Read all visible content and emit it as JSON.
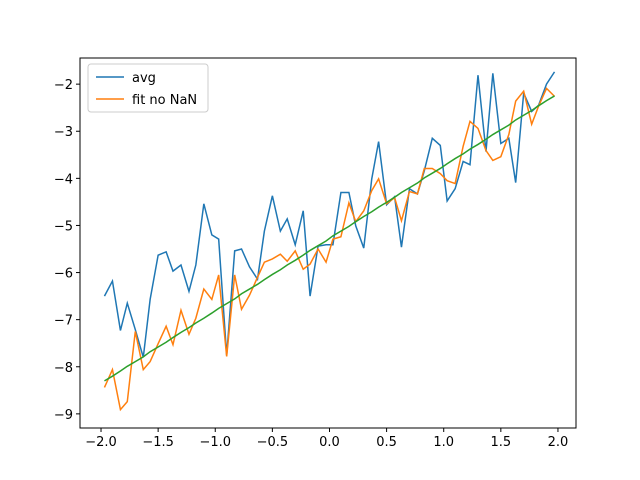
{
  "chart_data": {
    "type": "line",
    "x": [
      -1.97,
      -1.9,
      -1.83,
      -1.77,
      -1.7,
      -1.63,
      -1.57,
      -1.5,
      -1.43,
      -1.37,
      -1.3,
      -1.23,
      -1.17,
      -1.1,
      -1.03,
      -0.97,
      -0.9,
      -0.83,
      -0.77,
      -0.7,
      -0.63,
      -0.57,
      -0.5,
      -0.43,
      -0.37,
      -0.3,
      -0.23,
      -0.17,
      -0.1,
      -0.03,
      0.03,
      0.1,
      0.17,
      0.23,
      0.3,
      0.37,
      0.43,
      0.5,
      0.57,
      0.63,
      0.7,
      0.77,
      0.83,
      0.9,
      0.97,
      1.03,
      1.1,
      1.17,
      1.23,
      1.3,
      1.37,
      1.43,
      1.5,
      1.57,
      1.63,
      1.7,
      1.77,
      1.83,
      1.9,
      1.97
    ],
    "series": [
      {
        "name": "avg",
        "color": "#1f77b4",
        "values": [
          -6.5,
          -6.18,
          -7.23,
          -6.65,
          -7.21,
          -7.8,
          -6.57,
          -5.63,
          -5.56,
          -5.97,
          -5.84,
          -6.4,
          -5.84,
          -4.54,
          -5.2,
          -5.29,
          -7.76,
          -5.54,
          -5.5,
          -5.88,
          -6.14,
          -5.12,
          -4.37,
          -5.12,
          -4.86,
          -5.41,
          -4.69,
          -6.5,
          -5.44,
          -5.41,
          -5.41,
          -4.3,
          -4.3,
          -5.01,
          -5.48,
          -4.01,
          -3.22,
          -4.56,
          -4.39,
          -5.46,
          -4.22,
          -4.33,
          -3.84,
          -3.15,
          -3.3,
          -4.48,
          -4.22,
          -3.64,
          -3.71,
          -1.81,
          -3.43,
          -1.77,
          -3.26,
          -3.15,
          -4.09,
          -2.19,
          -2.58,
          -2.45,
          -2.0,
          -1.74
        ]
      },
      {
        "name": "fit no NaN",
        "color": "#ff7f0e",
        "values": [
          -8.44,
          -8.06,
          -8.91,
          -8.74,
          -7.25,
          -8.06,
          -7.89,
          -7.51,
          -7.14,
          -7.53,
          -6.8,
          -7.31,
          -6.97,
          -6.35,
          -6.57,
          -6.05,
          -7.78,
          -6.05,
          -6.78,
          -6.48,
          -6.1,
          -5.78,
          -5.71,
          -5.61,
          -5.76,
          -5.54,
          -5.93,
          -5.82,
          -5.5,
          -5.78,
          -5.29,
          -5.24,
          -4.52,
          -4.92,
          -4.69,
          -4.26,
          -4.01,
          -4.54,
          -4.41,
          -4.9,
          -4.28,
          -4.33,
          -3.79,
          -3.79,
          -3.9,
          -4.05,
          -4.11,
          -3.32,
          -2.79,
          -2.94,
          -3.41,
          -3.62,
          -3.54,
          -3.07,
          -2.36,
          -2.15,
          -2.85,
          -2.47,
          -2.09,
          -2.26
        ]
      },
      {
        "color": "#2ca02c",
        "values": [
          -8.3,
          -8.2,
          -8.09,
          -7.99,
          -7.89,
          -7.79,
          -7.68,
          -7.58,
          -7.48,
          -7.38,
          -7.27,
          -7.17,
          -7.07,
          -6.97,
          -6.86,
          -6.76,
          -6.66,
          -6.56,
          -6.45,
          -6.35,
          -6.25,
          -6.15,
          -6.04,
          -5.94,
          -5.84,
          -5.74,
          -5.63,
          -5.53,
          -5.43,
          -5.33,
          -5.22,
          -5.12,
          -5.02,
          -4.92,
          -4.81,
          -4.71,
          -4.61,
          -4.51,
          -4.4,
          -4.3,
          -4.2,
          -4.1,
          -3.99,
          -3.89,
          -3.79,
          -3.69,
          -3.58,
          -3.48,
          -3.38,
          -3.28,
          -3.17,
          -3.07,
          -2.97,
          -2.87,
          -2.76,
          -2.66,
          -2.56,
          -2.46,
          -2.35,
          -2.25
        ]
      }
    ],
    "xlim": [
      -2.184,
      2.158
    ],
    "xticks": [
      {
        "value": -2,
        "label": "−2.0"
      },
      {
        "value": -1.5,
        "label": "−1.5"
      },
      {
        "value": -1,
        "label": "−1.0"
      },
      {
        "value": -0.5,
        "label": "−0.5"
      },
      {
        "value": 0,
        "label": "0.0"
      },
      {
        "value": 0.5,
        "label": "0.5"
      },
      {
        "value": 1,
        "label": "1.0"
      },
      {
        "value": 1.5,
        "label": "1.5"
      },
      {
        "value": 2,
        "label": "2.0"
      }
    ],
    "ylim": [
      -9.3,
      -1.445
    ],
    "yticks": [
      {
        "value": -9,
        "label": "−9"
      },
      {
        "value": -8,
        "label": "−8"
      },
      {
        "value": -7,
        "label": "−7"
      },
      {
        "value": -6,
        "label": "−6"
      },
      {
        "value": -5,
        "label": "−5"
      },
      {
        "value": -4,
        "label": "−4"
      },
      {
        "value": -3,
        "label": "−3"
      },
      {
        "value": -2,
        "label": "−2"
      }
    ],
    "legend": "upper left"
  }
}
